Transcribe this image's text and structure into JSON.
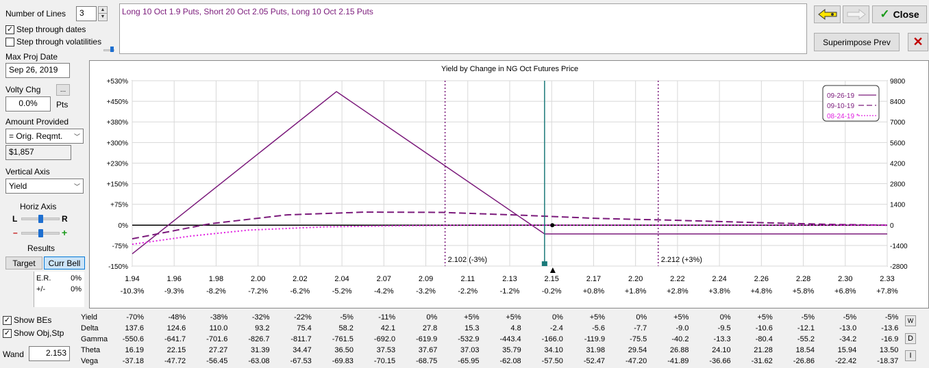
{
  "left_panel": {
    "number_of_lines_label": "Number of Lines",
    "number_of_lines_value": "3",
    "step_dates_label": "Step through dates",
    "step_dates_checked": true,
    "step_vols_label": "Step through volatilities",
    "step_vols_checked": false,
    "max_proj_date_label": "Max Proj Date",
    "max_proj_date_value": "Sep 26, 2019",
    "volty_chg_label": "Volty Chg",
    "volty_btn_label": "...",
    "volty_value": "0.0%",
    "volty_unit": "Pts",
    "amount_label": "Amount Provided",
    "amount_option": "= Orig. Reqmt.",
    "amount_value": "$1,857",
    "vertical_axis_label": "Vertical Axis",
    "vertical_axis_value": "Yield",
    "horiz_axis_label": "Horiz Axis",
    "horiz_l": "L",
    "horiz_r": "R",
    "minus": "–",
    "plus": "+",
    "results_label": "Results",
    "target_btn": "Target",
    "curr_bell_btn": "Curr Bell",
    "er_label": "E.R.",
    "er_value": "0%",
    "pm_label": "+/-",
    "pm_value": "0%",
    "show_bes_label": "Show BEs",
    "show_bes_checked": true,
    "show_obj_label": "Show Obj,Stp",
    "show_obj_checked": true,
    "wand_label": "Wand",
    "wand_value": "2.153"
  },
  "description": "Long 10 Oct 1.9 Puts, Short 20 Oct 2.05 Puts, Long 10 Oct 2.15 Puts",
  "top_buttons": {
    "close_label": "Close",
    "superimpose_label": "Superimpose Prev"
  },
  "colors": {
    "line1": "#7b1a7b",
    "line2": "#7b1a7b",
    "line3": "#e020e0",
    "wand": "#1a7a7a",
    "breakeven": "#7b1a7b",
    "desc_text": "#7b1a7b"
  },
  "chart_data": {
    "type": "line",
    "title": "Yield by Change in NG Oct Futures Price",
    "xlabel": "",
    "ylabel": "",
    "xlim": [
      1.94,
      2.33
    ],
    "ylim": [
      -150,
      530
    ],
    "y2lim": [
      -2800,
      9800
    ],
    "x_ticks": [
      "1.94",
      "1.96",
      "1.98",
      "2.00",
      "2.02",
      "2.04",
      "2.07",
      "2.09",
      "2.11",
      "2.13",
      "2.15",
      "2.17",
      "2.20",
      "2.22",
      "2.24",
      "2.26",
      "2.28",
      "2.30",
      "2.33"
    ],
    "x_pct_ticks": [
      "-10.3%",
      "-9.3%",
      "-8.2%",
      "-7.2%",
      "-6.2%",
      "-5.2%",
      "-4.2%",
      "-3.2%",
      "-2.2%",
      "-1.2%",
      "-0.2%",
      "+0.8%",
      "+1.8%",
      "+2.8%",
      "+3.8%",
      "+4.8%",
      "+5.8%",
      "+6.8%",
      "+7.8%"
    ],
    "y_left_ticks": [
      "+530%",
      "+450%",
      "+380%",
      "+300%",
      "+230%",
      "+150%",
      "+75%",
      "0%",
      "-75%",
      "-150%"
    ],
    "y_right_ticks": [
      "9800",
      "8400",
      "7000",
      "5600",
      "4200",
      "2800",
      "1400",
      "0",
      "-1400",
      "-2800"
    ],
    "series": [
      {
        "name": "09-26-19",
        "style": "solid",
        "x": [
          1.94,
          2.0455,
          2.153,
          2.33
        ],
        "y": [
          -105,
          490,
          -32,
          -32
        ]
      },
      {
        "name": "09-10-19",
        "style": "dashed",
        "x": [
          1.94,
          1.98,
          2.02,
          2.06,
          2.1,
          2.14,
          2.18,
          2.22,
          2.26,
          2.3,
          2.33
        ],
        "y": [
          -50,
          5,
          38,
          48,
          47,
          37,
          25,
          18,
          10,
          3,
          0
        ]
      },
      {
        "name": "08-24-19 *",
        "style": "dotted",
        "x": [
          1.94,
          1.97,
          2.0,
          2.04,
          2.08,
          2.12,
          2.33
        ],
        "y": [
          -70,
          -40,
          -18,
          -6,
          -2,
          0,
          0
        ]
      }
    ],
    "breakevens": [
      {
        "x": 2.1016,
        "label": "2.102 (-3%)"
      },
      {
        "x": 2.2117,
        "label": "2.212 (+3%)"
      }
    ],
    "wand_x": 2.153,
    "legend_position": "top-right"
  },
  "greeks": {
    "rows": [
      {
        "label": "Yield",
        "values": [
          "-70%",
          "-48%",
          "-38%",
          "-32%",
          "-22%",
          "-5%",
          "-11%",
          "0%",
          "+5%",
          "+5%",
          "0%",
          "+5%",
          "0%",
          "+5%",
          "0%",
          "+5%",
          "-5%",
          "-5%",
          "-5%"
        ]
      },
      {
        "label": "Delta",
        "values": [
          "137.6",
          "124.6",
          "110.0",
          "93.2",
          "75.4",
          "58.2",
          "42.1",
          "27.8",
          "15.3",
          "4.8",
          "-2.4",
          "-5.6",
          "-7.7",
          "-9.0",
          "-9.5",
          "-10.6",
          "-12.1",
          "-13.0",
          "-13.6"
        ]
      },
      {
        "label": "Gamma",
        "values": [
          "-550.6",
          "-641.7",
          "-701.6",
          "-826.7",
          "-811.7",
          "-761.5",
          "-692.0",
          "-619.9",
          "-532.9",
          "-443.4",
          "-166.0",
          "-119.9",
          "-75.5",
          "-40.2",
          "-13.3",
          "-80.4",
          "-55.2",
          "-34.2",
          "-16.9"
        ]
      },
      {
        "label": "Theta",
        "values": [
          "16.19",
          "22.15",
          "27.27",
          "31.39",
          "34.47",
          "36.50",
          "37.53",
          "37.67",
          "37.03",
          "35.79",
          "34.10",
          "31.98",
          "29.54",
          "26.88",
          "24.10",
          "21.28",
          "18.54",
          "15.94",
          "13.50"
        ]
      },
      {
        "label": "Vega",
        "values": [
          "-37.18",
          "-47.72",
          "-56.45",
          "-63.08",
          "-67.53",
          "-69.83",
          "-70.15",
          "-68.75",
          "-65.95",
          "-62.08",
          "-57.50",
          "-52.47",
          "-47.20",
          "-41.89",
          "-36.66",
          "-31.62",
          "-26.86",
          "-22.42",
          "-18.37"
        ]
      }
    ],
    "side_buttons": [
      "W",
      "D",
      "I"
    ]
  }
}
